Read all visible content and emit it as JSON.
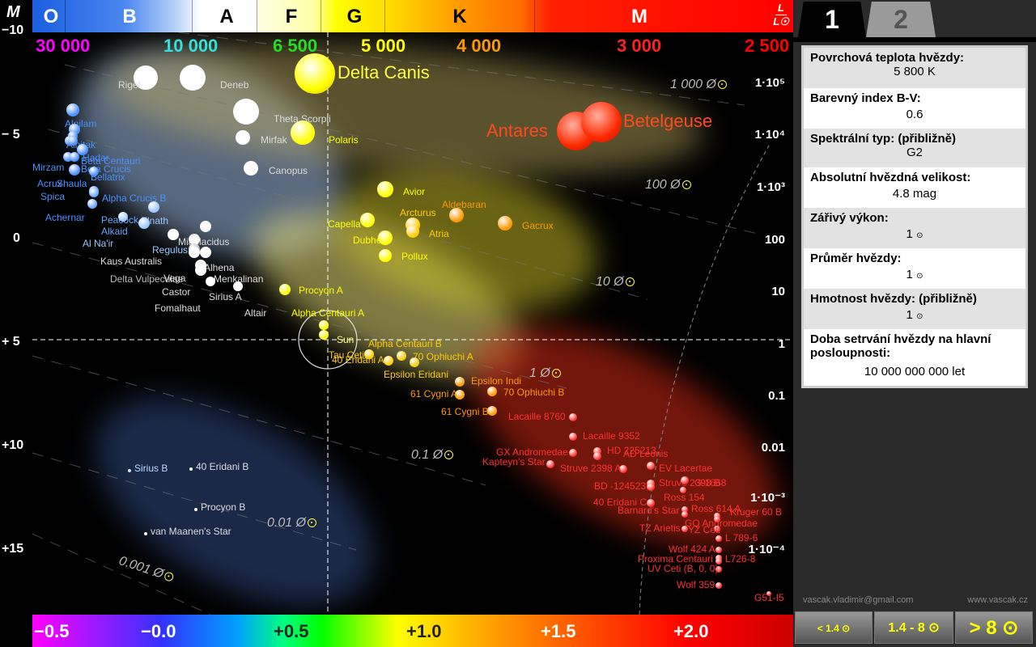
{
  "axes": {
    "m_label": "M",
    "l_label_top": "L",
    "l_label_bottom": "L☉"
  },
  "spectral_classes": [
    "O",
    "B",
    "A",
    "F",
    "G",
    "K",
    "M"
  ],
  "temperatures": [
    {
      "label": "30 000",
      "color": "#ff00ff"
    },
    {
      "label": "10 000",
      "color": "#33e0e0"
    },
    {
      "label": "6 500",
      "color": "#22dd22"
    },
    {
      "label": "5 000",
      "color": "#ffff00"
    },
    {
      "label": "4 000",
      "color": "#ff9900"
    },
    {
      "label": "3 000",
      "color": "#ff2020"
    },
    {
      "label": "2 500",
      "color": "#ff0000"
    }
  ],
  "magnitude_ticks": [
    "−10",
    "− 5",
    "0",
    "+ 5",
    "+10",
    "+15"
  ],
  "luminosity_ticks": [
    "1·10⁵",
    "1·10⁴",
    "1·10³",
    "100",
    "10",
    "1",
    "0.1",
    "0.01",
    "1·10⁻³",
    "1·10⁻⁴"
  ],
  "radius_lines": [
    "1 000 Ø",
    "100 Ø",
    "10 Ø",
    "1 Ø",
    "0.1 Ø",
    "0.01 Ø",
    "0.001 Ø"
  ],
  "color_index_ticks": [
    "−0.5",
    "−0.0",
    "+0.5",
    "+1.0",
    "+1.5",
    "+2.0"
  ],
  "big_stars": {
    "delta_canis": "Delta Canis",
    "antares": "Antares",
    "betelgeuse": "Betelgeuse"
  },
  "stars": [
    {
      "name": "Alnilam",
      "color": "#4a90ff"
    },
    {
      "name": "Alnitak",
      "color": "#4a90ff"
    },
    {
      "name": "Hadar",
      "color": "#4a90ff"
    },
    {
      "name": "Beta Centauri",
      "color": "#4a90ff"
    },
    {
      "name": "Mirzam",
      "color": "#4a90ff"
    },
    {
      "name": "Beta Crucis",
      "color": "#4a90ff"
    },
    {
      "name": "Bellatrix",
      "color": "#4a90ff"
    },
    {
      "name": "Acrux",
      "color": "#4a90ff"
    },
    {
      "name": "Shaula",
      "color": "#4a90ff"
    },
    {
      "name": "Spica",
      "color": "#4a90ff"
    },
    {
      "name": "Alpha Crucis B",
      "color": "#4a90ff"
    },
    {
      "name": "Achernar",
      "color": "#4a90ff"
    },
    {
      "name": "Peacock",
      "color": "#6aa8ff"
    },
    {
      "name": "Elnath",
      "color": "#9cc8ff"
    },
    {
      "name": "Alkaid",
      "color": "#6aa8ff"
    },
    {
      "name": "Al Na'ir",
      "color": "#9cc8ff"
    },
    {
      "name": "Regulus",
      "color": "#9cc8ff"
    },
    {
      "name": "Kaus Australis",
      "color": "#ffffff"
    },
    {
      "name": "Miaplacidus",
      "color": "#ffffff"
    },
    {
      "name": "Alhena",
      "color": "#ffffff"
    },
    {
      "name": "Delta Vulpeculae",
      "color": "#bbbbbb"
    },
    {
      "name": "Vega",
      "color": "#ffffff"
    },
    {
      "name": "Menkalinan",
      "color": "#ffffff"
    },
    {
      "name": "Castor",
      "color": "#ffffff"
    },
    {
      "name": "Sirius A",
      "color": "#ffffff"
    },
    {
      "name": "Fomalhaut",
      "color": "#ffffff"
    },
    {
      "name": "Altair",
      "color": "#ffffff"
    },
    {
      "name": "Rigel",
      "color": "#ffffff"
    },
    {
      "name": "Deneb",
      "color": "#ffffff"
    },
    {
      "name": "Theta Scorpii",
      "color": "#ffffff"
    },
    {
      "name": "Mirfak",
      "color": "#ffffff"
    },
    {
      "name": "Polaris",
      "color": "#ffff00"
    },
    {
      "name": "Canopus",
      "color": "#ffffff"
    },
    {
      "name": "Avior",
      "color": "#ffff00"
    },
    {
      "name": "Aldebaran",
      "color": "#ff9900"
    },
    {
      "name": "Arcturus",
      "color": "#ffcc00"
    },
    {
      "name": "Capella",
      "color": "#ffff00"
    },
    {
      "name": "Atria",
      "color": "#ffcc00"
    },
    {
      "name": "Gacrux",
      "color": "#ff9900"
    },
    {
      "name": "Dubhe",
      "color": "#ffff00"
    },
    {
      "name": "Pollux",
      "color": "#ffff00"
    },
    {
      "name": "Procyon A",
      "color": "#ffff00"
    },
    {
      "name": "Alpha Centauri A",
      "color": "#ffff00"
    },
    {
      "name": "Sun",
      "color": "#ffff00"
    },
    {
      "name": "Alpha Centauri B",
      "color": "#ffcc00"
    },
    {
      "name": "Tau Ceti",
      "color": "#ffcc00"
    },
    {
      "name": "70 Ophiuchi A",
      "color": "#ffcc00"
    },
    {
      "name": "40 Eridani A",
      "color": "#ffcc00"
    },
    {
      "name": "Epsilon Eridani",
      "color": "#ffcc00"
    },
    {
      "name": "Epsilon Indi",
      "color": "#ff9900"
    },
    {
      "name": "61 Cygni A",
      "color": "#ff9900"
    },
    {
      "name": "70 Ophiuchi B",
      "color": "#ff9900"
    },
    {
      "name": "61 Cygni B",
      "color": "#ff9900"
    },
    {
      "name": "Lacaille 8760",
      "color": "#ff3030"
    },
    {
      "name": "Lacaille 9352",
      "color": "#ff3030"
    },
    {
      "name": "GX Andromedae",
      "color": "#ff3030"
    },
    {
      "name": "HD 225213",
      "color": "#ff3030"
    },
    {
      "name": "AD Leonis",
      "color": "#ff3030"
    },
    {
      "name": "Kapteyn's Star",
      "color": "#ff3030"
    },
    {
      "name": "Struve 2398 A",
      "color": "#ff3030"
    },
    {
      "name": "EV Lacertae",
      "color": "#ff3030"
    },
    {
      "name": "BD -124523",
      "color": "#ff3030"
    },
    {
      "name": "Struve 2398 B",
      "color": "#ff3030"
    },
    {
      "name": "G 1668",
      "color": "#ff3030"
    },
    {
      "name": "Ross 154",
      "color": "#ff3030"
    },
    {
      "name": "40 Eridani C",
      "color": "#ff3030"
    },
    {
      "name": "Barnard's Star",
      "color": "#ff3030"
    },
    {
      "name": "Ross 614 A",
      "color": "#ff3030"
    },
    {
      "name": "Kruger 60 B",
      "color": "#ff3030"
    },
    {
      "name": "GQ Andromedae",
      "color": "#ff3030"
    },
    {
      "name": "TZ Arietis",
      "color": "#ff3030"
    },
    {
      "name": "YZ Ceti",
      "color": "#ff3030"
    },
    {
      "name": "L 789-6",
      "color": "#ff3030"
    },
    {
      "name": "Wolf 424 A",
      "color": "#ff3030"
    },
    {
      "name": "Proxima Centauri",
      "color": "#ff3030"
    },
    {
      "name": "L726-8",
      "color": "#ff3030"
    },
    {
      "name": "UV Ceti (B, 0, 0)",
      "color": "#ff3030"
    },
    {
      "name": "Wolf 359",
      "color": "#ff3030"
    },
    {
      "name": "G51-I5",
      "color": "#ff3030"
    },
    {
      "name": "Sirius B",
      "color": "#bcd8ff"
    },
    {
      "name": "40 Eridani B",
      "color": "#ffffff"
    },
    {
      "name": "Procyon B",
      "color": "#ffffff"
    },
    {
      "name": "van Maanen's Star",
      "color": "#ffffff"
    }
  ],
  "tabs": [
    "1",
    "2"
  ],
  "info": [
    {
      "title": "Povrchová teplota hvězdy:",
      "value": "5 800 K"
    },
    {
      "title": "Barevný index B-V:",
      "value": "0.6"
    },
    {
      "title": "Spektrální typ: (přibližně)",
      "value": "G2"
    },
    {
      "title": "Absolutní hvězdná velikost:",
      "value": "4.8 mag"
    },
    {
      "title": "Zářivý výkon:",
      "value": "1"
    },
    {
      "title": "Průměr hvězdy:",
      "value": "1"
    },
    {
      "title": "Hmotnost hvězdy: (přibližně)",
      "value": "1"
    },
    {
      "title": "Doba setrvání hvězdy na hlavní posloupnosti:",
      "value": "10 000 000 000 let"
    }
  ],
  "footer": {
    "email": "vascak.vladimir@gmail.com",
    "web": "www.vascak.cz"
  },
  "mass_buttons": [
    "< 1.4",
    "1.4 - 8",
    "> 8"
  ]
}
